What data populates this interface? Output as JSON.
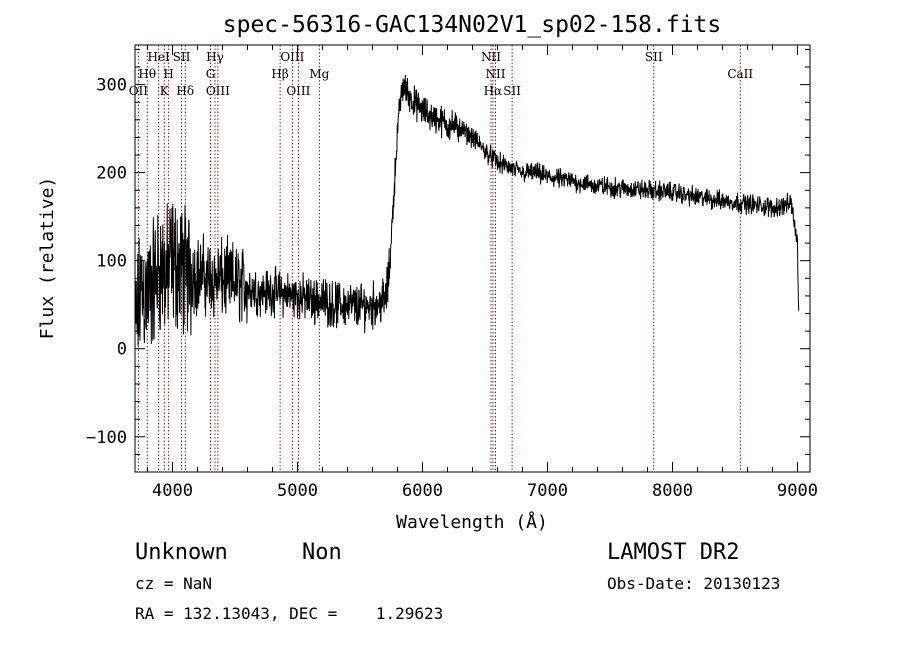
{
  "chart_data": {
    "type": "line",
    "title": "spec-56316-GAC134N02V1_sp02-158.fits",
    "xlabel": "Wavelength (Å)",
    "ylabel": "Flux (relative)",
    "xlim": [
      3700,
      9100
    ],
    "ylim": [
      -140,
      345
    ],
    "x_ticks": [
      4000,
      5000,
      6000,
      7000,
      8000,
      9000
    ],
    "x_tick_labels": [
      "4000",
      "5000",
      "6000",
      "7000",
      "8000",
      "9000"
    ],
    "y_ticks": [
      -100,
      0,
      100,
      200,
      300
    ],
    "y_tick_labels": [
      "−100",
      "0",
      "100",
      "200",
      "300"
    ],
    "grid": false,
    "line_color": "#000000",
    "marker_color": "#8b1a1a",
    "spectrum_anchors": [
      [
        3700,
        15
      ],
      [
        3750,
        70
      ],
      [
        3800,
        60
      ],
      [
        3850,
        75
      ],
      [
        3900,
        95
      ],
      [
        3950,
        80
      ],
      [
        4000,
        100
      ],
      [
        4050,
        95
      ],
      [
        4100,
        90
      ],
      [
        4200,
        85
      ],
      [
        4300,
        80
      ],
      [
        4400,
        78
      ],
      [
        4500,
        75
      ],
      [
        4600,
        70
      ],
      [
        4700,
        65
      ],
      [
        4800,
        65
      ],
      [
        4900,
        62
      ],
      [
        5000,
        60
      ],
      [
        5100,
        55
      ],
      [
        5200,
        55
      ],
      [
        5300,
        50
      ],
      [
        5400,
        50
      ],
      [
        5500,
        48
      ],
      [
        5600,
        50
      ],
      [
        5700,
        55
      ],
      [
        5730,
        80
      ],
      [
        5760,
        150
      ],
      [
        5790,
        225
      ],
      [
        5820,
        280
      ],
      [
        5850,
        300
      ],
      [
        5900,
        285
      ],
      [
        6000,
        270
      ],
      [
        6100,
        262
      ],
      [
        6200,
        255
      ],
      [
        6300,
        250
      ],
      [
        6400,
        240
      ],
      [
        6500,
        225
      ],
      [
        6600,
        212
      ],
      [
        6700,
        205
      ],
      [
        6800,
        200
      ],
      [
        6900,
        200
      ],
      [
        7000,
        195
      ],
      [
        7200,
        190
      ],
      [
        7400,
        185
      ],
      [
        7600,
        182
      ],
      [
        7800,
        180
      ],
      [
        8000,
        178
      ],
      [
        8200,
        172
      ],
      [
        8400,
        168
      ],
      [
        8600,
        165
      ],
      [
        8800,
        160
      ],
      [
        8950,
        165
      ],
      [
        9000,
        120
      ],
      [
        9010,
        30
      ]
    ],
    "line_markers": [
      {
        "label": "OII",
        "x": 3727,
        "row": 3
      },
      {
        "label": "Hθ",
        "x": 3798,
        "row": 2
      },
      {
        "label": "HeI",
        "x": 3889,
        "row": 1
      },
      {
        "label": "K",
        "x": 3934,
        "row": 3
      },
      {
        "label": "H",
        "x": 3969,
        "row": 2
      },
      {
        "label": "SII",
        "x": 4072,
        "row": 1
      },
      {
        "label": "Hδ",
        "x": 4102,
        "row": 3
      },
      {
        "label": "Hγ",
        "x": 4340,
        "row": 1
      },
      {
        "label": "G",
        "x": 4304,
        "row": 2
      },
      {
        "label": "OIII",
        "x": 4363,
        "row": 3
      },
      {
        "label": "Hβ",
        "x": 4861,
        "row": 2
      },
      {
        "label": "OIII",
        "x": 4959,
        "row": 1
      },
      {
        "label": "OIII",
        "x": 5007,
        "row": 3
      },
      {
        "label": "Mg",
        "x": 5175,
        "row": 2
      },
      {
        "label": "NII",
        "x": 6548,
        "row": 1
      },
      {
        "label": "NII",
        "x": 6584,
        "row": 2
      },
      {
        "label": "Hα",
        "x": 6563,
        "row": 3
      },
      {
        "label": "SII",
        "x": 6717,
        "row": 3
      },
      {
        "label": "SII",
        "x": 7850,
        "row": 1
      },
      {
        "label": "CaII",
        "x": 8542,
        "row": 2
      }
    ]
  },
  "footer": {
    "class_label": "Unknown",
    "subclass_label": "Non",
    "survey_label": "LAMOST DR2",
    "cz_text": "cz = NaN",
    "obs_date_text": "Obs-Date: 20130123",
    "coords_text": "RA = 132.13043, DEC =    1.29623"
  }
}
